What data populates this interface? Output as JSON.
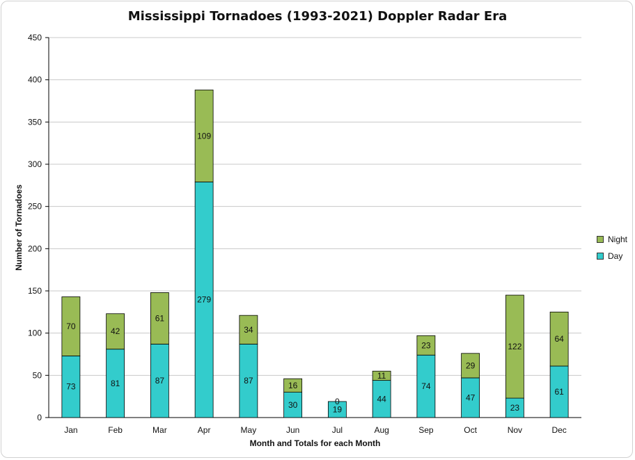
{
  "chart_data": {
    "type": "bar",
    "stacked": true,
    "title": "Mississippi Tornadoes (1993-2021) Doppler Radar Era",
    "xlabel": "Month and Totals for each Month",
    "ylabel": "Number of Tornadoes",
    "ylim": [
      0,
      450
    ],
    "yticks": [
      0,
      50,
      100,
      150,
      200,
      250,
      300,
      350,
      400,
      450
    ],
    "grid": true,
    "legend_position": "right",
    "categories": [
      "Jan",
      "Feb",
      "Mar",
      "Apr",
      "May",
      "Jun",
      "Jul",
      "Aug",
      "Sep",
      "Oct",
      "Nov",
      "Dec"
    ],
    "series": [
      {
        "name": "Day",
        "color": "#33cccc",
        "values": [
          73,
          81,
          87,
          279,
          87,
          30,
          19,
          44,
          74,
          47,
          23,
          61
        ]
      },
      {
        "name": "Night",
        "color": "#99bb55",
        "values": [
          70,
          42,
          61,
          109,
          34,
          16,
          0,
          11,
          23,
          29,
          122,
          64
        ]
      }
    ],
    "legend": [
      {
        "name": "Night",
        "color": "#99bb55"
      },
      {
        "name": "Day",
        "color": "#33cccc"
      }
    ]
  }
}
